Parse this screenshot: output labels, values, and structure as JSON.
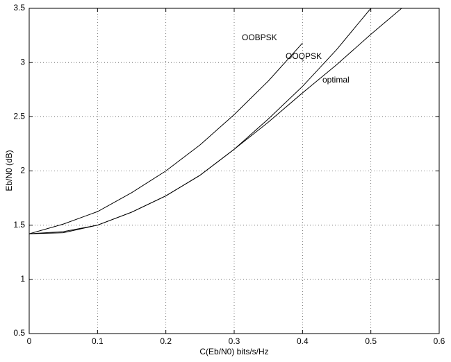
{
  "chart_data": {
    "type": "line",
    "xlabel": "C(Eb/N0) bits/s/Hz",
    "ylabel": "Eb/N0 (dB)",
    "x": [
      0,
      0.05,
      0.1,
      0.15,
      0.2,
      0.25,
      0.3,
      0.35,
      0.4,
      0.45,
      0.5,
      0.545
    ],
    "series": [
      {
        "name": "OOBPSK",
        "color": "#000000",
        "values": [
          1.42,
          1.51,
          1.625,
          1.8,
          2.0,
          2.24,
          2.52,
          2.83,
          3.18,
          null,
          null,
          null
        ]
      },
      {
        "name": "OOQPSK",
        "color": "#000000",
        "values": [
          1.42,
          1.43,
          1.5,
          1.62,
          1.77,
          1.96,
          2.2,
          2.48,
          2.78,
          3.12,
          3.5,
          null
        ]
      },
      {
        "name": "optimal",
        "color": "#000000",
        "values": [
          1.42,
          1.44,
          1.5,
          1.62,
          1.77,
          1.96,
          2.2,
          2.45,
          2.72,
          2.98,
          3.26,
          3.5
        ]
      }
    ],
    "xlim": [
      0,
      0.6
    ],
    "xticks": [
      0,
      0.1,
      0.2,
      0.3,
      0.4,
      0.5,
      0.6
    ],
    "ylim": [
      0.5,
      3.5
    ],
    "yticks": [
      0.5,
      1,
      1.5,
      2,
      2.5,
      3,
      3.5
    ],
    "grid": true
  }
}
